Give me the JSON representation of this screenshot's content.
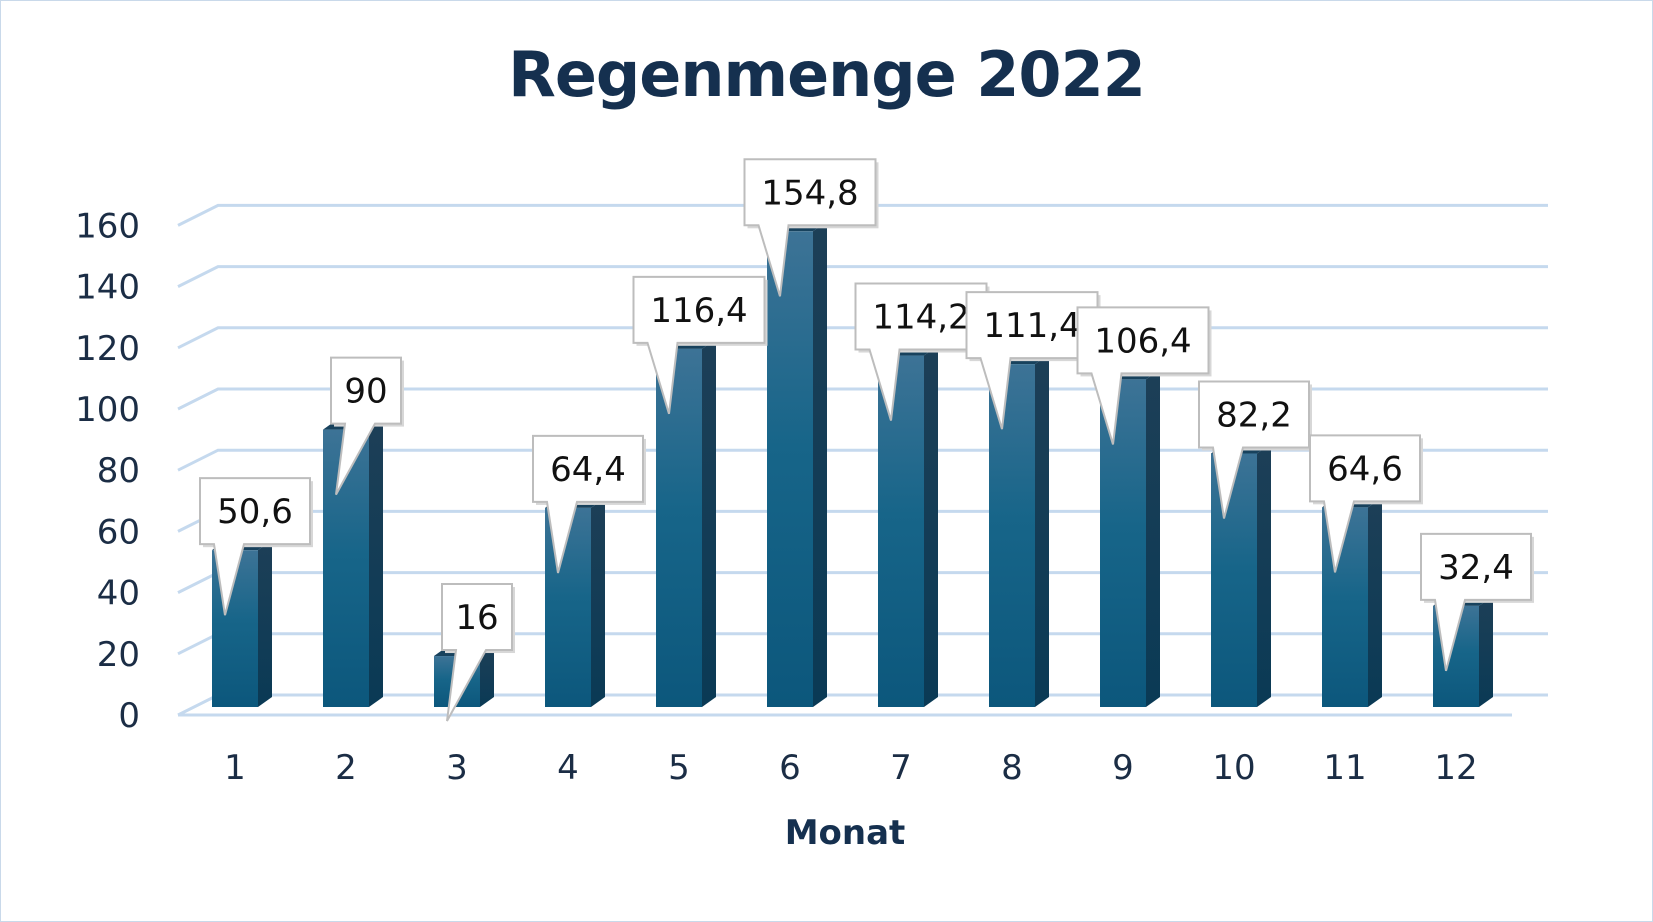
{
  "chart_data": {
    "type": "bar",
    "title": "Regenmenge 2022",
    "xlabel": "Monat",
    "ylabel": "",
    "categories": [
      "1",
      "2",
      "3",
      "4",
      "5",
      "6",
      "7",
      "8",
      "9",
      "10",
      "11",
      "12"
    ],
    "values": [
      50.6,
      90,
      16,
      64.4,
      116.4,
      154.8,
      114.2,
      111.4,
      106.4,
      82.2,
      64.6,
      32.4
    ],
    "value_labels": [
      "50,6",
      "90",
      "16",
      "64,4",
      "116,4",
      "154,8",
      "114,2",
      "111,4",
      "106,4",
      "82,2",
      "64,6",
      "32,4"
    ],
    "yticks": [
      "0",
      "20",
      "40",
      "60",
      "80",
      "100",
      "120",
      "140",
      "160"
    ],
    "ylim": [
      0,
      160
    ],
    "grid": true,
    "legend": "none",
    "style": "3d-column-with-callout-labels"
  },
  "colors": {
    "bar_top": "#3a6f92",
    "bar_bottom": "#0d5a80",
    "bar_side": "#0b3c57",
    "bar_cap": "#18425d",
    "gridline": "#c5d9ee",
    "title": "#15304f"
  }
}
